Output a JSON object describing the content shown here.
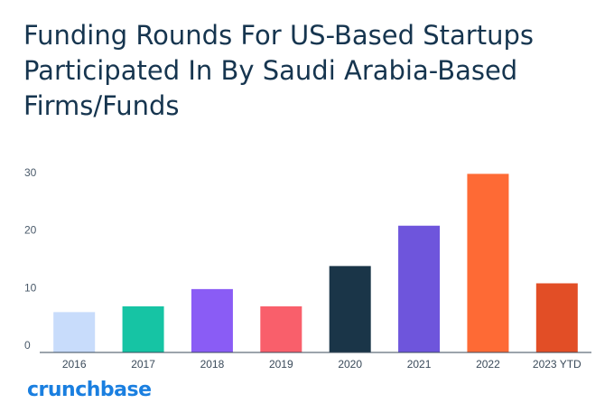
{
  "chart_data": {
    "type": "bar",
    "title": "Funding Rounds For US-Based Startups Participated In By Saudi Arabia-Based Firms/Funds",
    "categories": [
      "2016",
      "2017",
      "2018",
      "2019",
      "2020",
      "2021",
      "2022",
      "2023 YTD"
    ],
    "values": [
      7,
      8,
      11,
      8,
      15,
      22,
      31,
      12
    ],
    "bar_colors": [
      "#c8dcfb",
      "#16c4a4",
      "#8a5cf5",
      "#f95f6b",
      "#1a3548",
      "#6e55dc",
      "#fe6a35",
      "#e24e26"
    ],
    "yticks": [
      0,
      10,
      20,
      30
    ],
    "ylim": [
      0,
      32
    ],
    "xlabel": "",
    "ylabel": "",
    "grid": false
  },
  "brand": "crunchbase",
  "colors": {
    "title": "#16354f",
    "brand": "#1a7fe0",
    "axis": "#3a4a5a"
  }
}
